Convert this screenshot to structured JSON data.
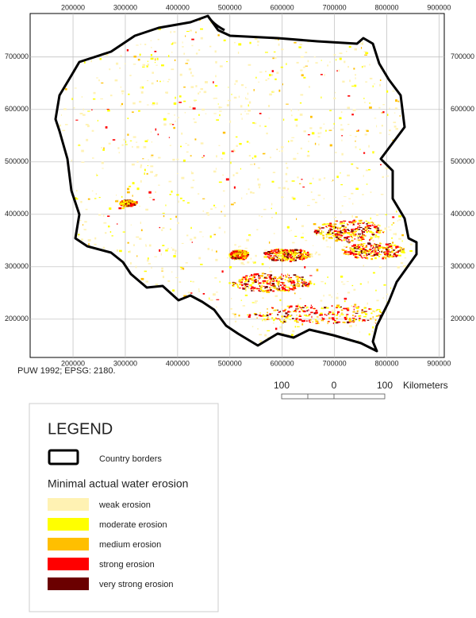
{
  "map": {
    "x_ticks": [
      200000,
      300000,
      400000,
      500000,
      600000,
      700000,
      800000,
      900000
    ],
    "y_ticks": [
      700000,
      600000,
      500000,
      400000,
      300000,
      200000
    ],
    "xlim": [
      118000,
      910000
    ],
    "ylim": [
      127000,
      783000
    ],
    "note": "PUW 1992; EPSG: 2180.",
    "scale_bar": {
      "labels": [
        "100",
        "0",
        "100"
      ],
      "unit": "Kilometers"
    },
    "legend": {
      "title": "LEGEND",
      "border_label": "Country borders",
      "section_title": "Minimal actual water erosion",
      "items": [
        {
          "label": "weak erosion",
          "color": "#fff2b3"
        },
        {
          "label": "moderate erosion",
          "color": "#ffff00"
        },
        {
          "label": "medium erosion",
          "color": "#ffbf00"
        },
        {
          "label": "strong erosion",
          "color": "#ff0000"
        },
        {
          "label": "very strong erosion",
          "color": "#6b0000"
        }
      ]
    }
  }
}
